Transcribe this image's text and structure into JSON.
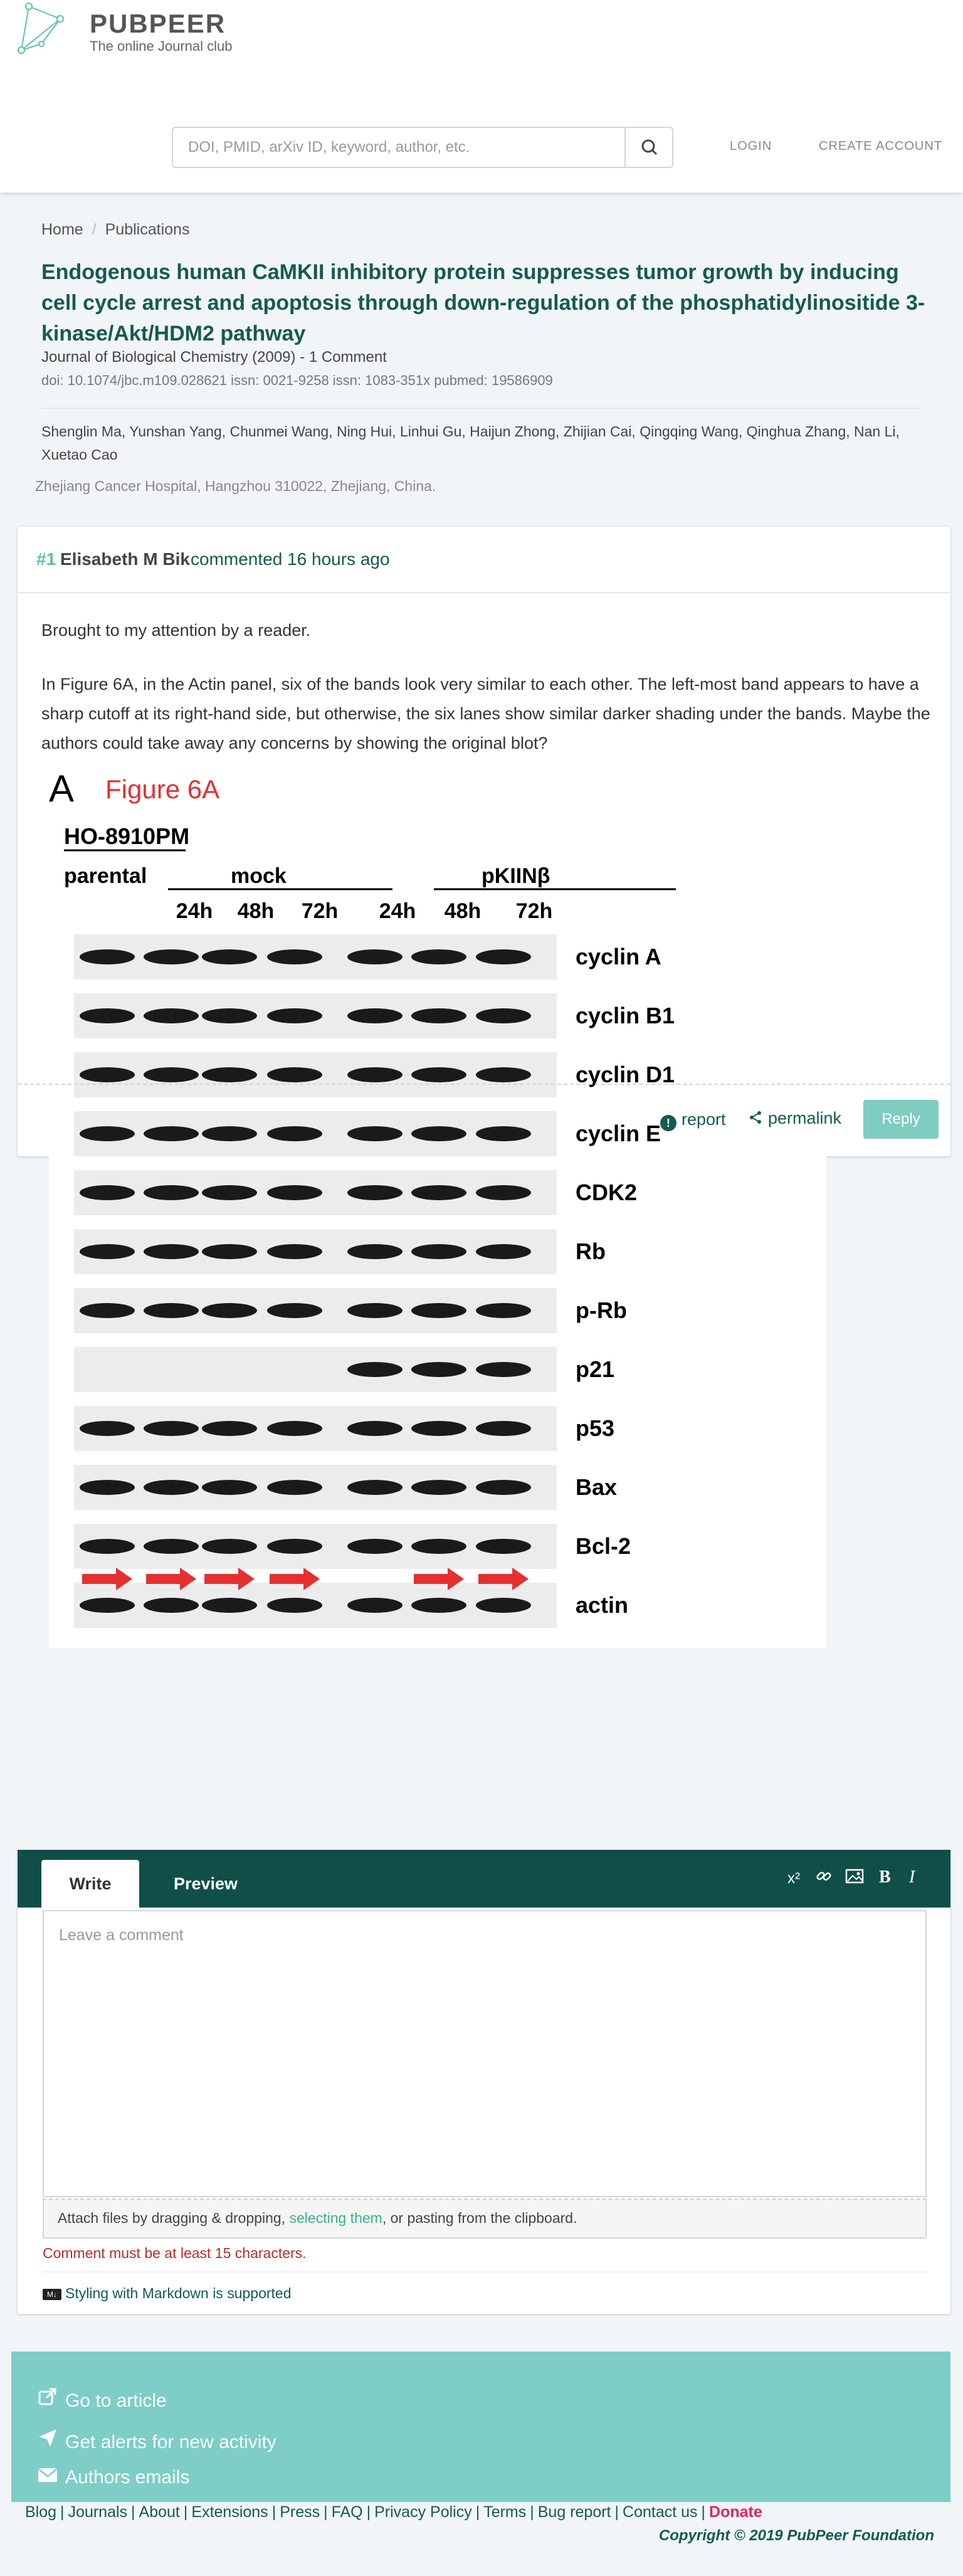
{
  "header": {
    "brand": "PUBPEER",
    "tagline": "The online Journal club",
    "search_placeholder": "DOI, PMID, arXiv ID, keyword, author, etc.",
    "login": "LOGIN",
    "create_account": "CREATE ACCOUNT"
  },
  "breadcrumb": {
    "home": "Home",
    "publications": "Publications"
  },
  "paper": {
    "title": "Endogenous human CaMKII inhibitory protein suppresses tumor growth by inducing cell cycle arrest and apoptosis through down-regulation of the phosphatidylinositide 3-kinase/Akt/HDM2 pathway",
    "journal_line": "Journal of Biological Chemistry (2009) - 1 Comment",
    "doi_line": "doi: 10.1074/jbc.m109.028621  issn: 0021-9258  issn: 1083-351x  pubmed: 19586909",
    "authors": "Shenglin Ma, Yunshan Yang, Chunmei Wang, Ning Hui, Linhui Gu, Haijun Zhong, Zhijian Cai, Qingqing Wang, Qinghua Zhang, Nan Li, Xuetao Cao",
    "affiliation": "Zhejiang Cancer Hospital, Hangzhou 310022, Zhejiang, China."
  },
  "comment": {
    "number": "#1",
    "author": "Elisabeth M Bik",
    "meta": "commented 16 hours ago",
    "paragraph1": "Brought to my attention by a reader.",
    "paragraph2": "In Figure 6A, in the Actin panel, six of the bands look very similar to each other. The left-most band appears to have a sharp cutoff at its right-hand side, but otherwise, the six lanes show similar darker shading under the bands. Maybe the authors could take away any concerns by showing the original blot?",
    "figure": {
      "panel_letter": "A",
      "caption": "Figure 6A",
      "cell_line": "HO-8910PM",
      "parental": "parental",
      "mock": "mock",
      "treated": "pKIINβ",
      "timepoints": [
        "24h",
        "48h",
        "72h",
        "24h",
        "48h",
        "72h"
      ],
      "rows": [
        "cyclin A",
        "cyclin B1",
        "cyclin D1",
        "cyclin E",
        "CDK2",
        "Rb",
        "p-Rb",
        "p21",
        "p53",
        "Bax",
        "Bcl-2",
        "actin"
      ]
    },
    "report": "report",
    "permalink": "permalink",
    "reply": "Reply"
  },
  "editor": {
    "tab_write": "Write",
    "tab_preview": "Preview",
    "tool_superscript": "x²",
    "tool_bold": "B",
    "tool_italic": "I",
    "placeholder": "Leave a comment",
    "attach_pre": "Attach files by dragging & dropping, ",
    "attach_link": "selecting them",
    "attach_post": ", or pasting from the clipboard.",
    "error": "Comment must be at least 15 characters.",
    "markdown_badge": "M↓",
    "markdown": "Styling with Markdown is supported"
  },
  "links": {
    "go_to_article": "Go to article",
    "alerts": "Get alerts for new activity",
    "authors_emails": "Authors emails"
  },
  "footer": {
    "items": [
      "Blog",
      "Journals",
      "About",
      "Extensions",
      "Press",
      "FAQ",
      "Privacy Policy",
      "Terms",
      "Bug report",
      "Contact us"
    ],
    "donate": "Donate",
    "copyright": "Copyright © 2019 PubPeer Foundation"
  }
}
